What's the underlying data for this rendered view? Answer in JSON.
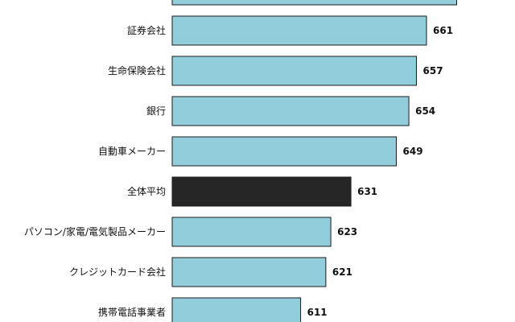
{
  "chart_data": {
    "type": "bar",
    "orientation": "horizontal",
    "categories": [
      "",
      "証券会社",
      "生命保険会社",
      "銀行",
      "自動車メーカー",
      "全体平均",
      "パソコン/家電/電気製品メーカー",
      "クレジットカード会社",
      "携帯電話事業者"
    ],
    "values": [
      673,
      661,
      657,
      654,
      649,
      631,
      623,
      621,
      611
    ],
    "value_labels": [
      "",
      "661",
      "657",
      "654",
      "649",
      "631",
      "623",
      "621",
      "611"
    ],
    "highlight_index": 5,
    "grid": false,
    "legend": "none"
  },
  "colors": {
    "bar": "#92cddc",
    "highlight": "#262626",
    "border": "#1a1a1a",
    "text": "#111111"
  }
}
